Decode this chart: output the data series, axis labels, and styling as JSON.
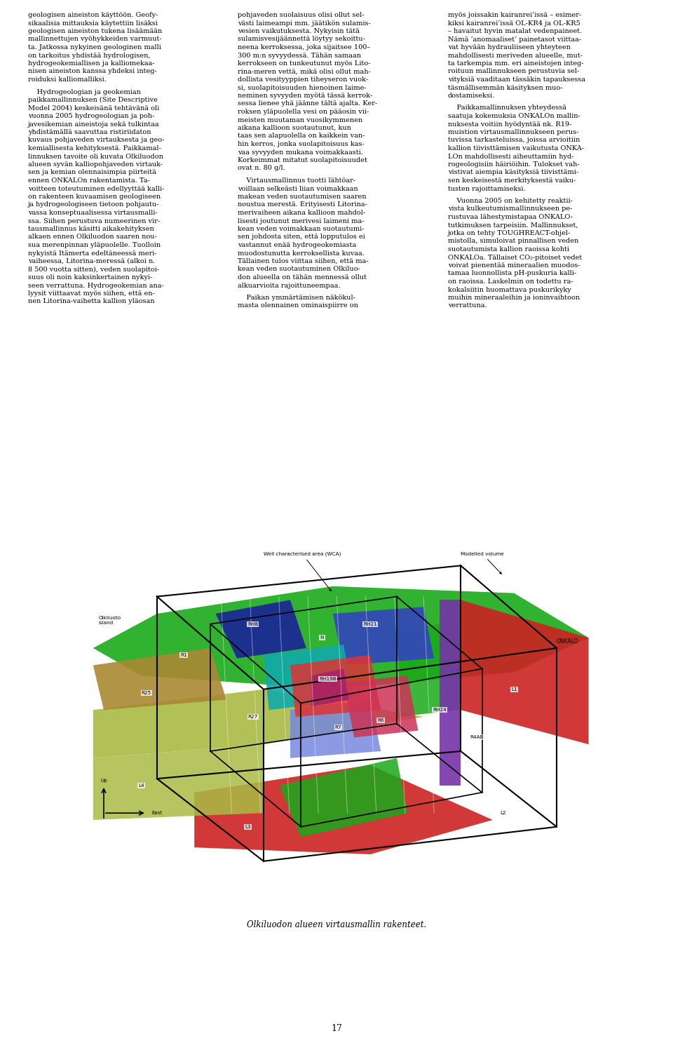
{
  "page_number": "17",
  "background_color": "#ffffff",
  "text_color": "#000000",
  "caption": "Olkiluodon alueen virtausmallin rakenteet.",
  "col1_paragraphs": [
    "geologisen aineiston käyttöön. Geofy-\nsikaalisia mittauksia käytettiin lisäksi\ngeologisen aineiston tukena lisäämään\nmallinnettujen vyöhykkeiden varmuut-\nta. Jatkossa nykyinen geologinen malli\non tarkoitus yhdistää hydrologisen,\nhydrogeokemiallisen ja kalliomekaa-\nnisen aineiston kanssa yhdeksi integ-\nroiduksi kalliomalliksi.",
    "    Hydrogeologian ja geokemian\npaikkamallinnuksen (Site Descriptive\nModel 2004) keskeisänä tehtävänä oli\nvuonna 2005 hydrogeologian ja poh-\njavesikemian aineistoja sekä tulkintaa\nyhdistämällä saavuttaa ristiriidaton\nkuvaus pohjaveden virtauksesta ja geo-\nkemiallisesta kehityksestä. Paikkamal-\nlinnuksen tavoite oli kuvata Olkiluodon\nalueen syvän kalliopohjaveden virtauk-\nsen ja kemian olennaisimpia piirteitä\nennen ONKALOn rakentamista. Ta-\nvoitteen toteutuminen edellyyttää kalli-\non rakenteen kuvaamisen geologiseen\nja hydrogeologiseen tietoon pohjautu-\nvassa konseptuaalisessa virtausmalli-\nssa. Siihen perustuva numeerinen vir-\ntausmallinnus käsitti aikakehityksen\nalkaen ennen Olkiluodon saaren nou-\nsua merenpinnan yläpuolelle. Tuolloin\nnykyistä Itämerta edeltäneessä meri-\nvaiheessa, Litorina-meressä (alkoi n.\n8 500 vuotta sitten), veden suolapitoi-\nsuus oli noin kaksinkertainen nykyi-\nseen verrattuna. Hydrogeokemian ana-\nlyysit viittaavat myös siihen, että en-\nnen Litorina-vaihetta kallion yläosan"
  ],
  "col2_paragraphs": [
    "pohjaveden suolaisuus olisi ollut sel-\nvästi laimeampi mm. jäätikön sulamis-\nvesien vaikutuksesta. Nykyisin tätä\nsulamisvesijäännettä löytyy sekoittu-\nneena kerroksessa, joka sijaitsee 100–\n300 m:n syvyydessä. Tähän samaan\nkerrokseen on tunkeutunut myös Lito-\nrina-meren vettä, mikä olisi ollut mah-\ndollista vesityyppien tiheyseron vuok-\nsi, suolapitoisuuden hienoinen laime-\nneminen syvyyden myötä tässä kerrok-\nsessa lienee yhä jäänne tältä ajalta. Ker-\nroksen yläpuolella vesi on pääosin vii-\nmeisten muutaman vuosikymmenen\naikana kallioon suotautunut, kun\ntaas sen alapuolella on kaikkein van-\nhin kerros, jonka suolapitoisuus kas-\nvaa syvyyden mukana voimakkaasti.\nKorkeimmat mitatut suolapitoisuudet\novat n. 80 g/l.",
    "    Virtausmallinnus tuotti lähtöar-\nvoillaan selkeästi liian voimakkaan\nmakean veden suotautumisen saaren\nnoustua merestä. Erityisesti Litorina-\nmerivaiheen aikana kallioon mahdol-\nlisesti joutunut merivesi laimeni ma-\nkean veden voimakkaan suotautumi-\nsen johdosta siten, että lopputulos ei\nvastannut enää hydrogeokemiasta\nmuodostunutta kerroksellista kuvaa.\nTällainen tulos viittaa siihen, että ma-\nkean veden suotautuminen Olkiluo-\ndon alueella on tähän mennessä ollut\nalkuarvioita rajoittuneempaa.",
    "    Paikan ymmärtämisen näkökul-\nmasta olennainen ominaispiirre on"
  ],
  "col3_paragraphs": [
    "myös joissakin kairanrei’issä – esimer-\nkiksi kairanrei’issä OL-KR4 ja OL-KR5\n– havaitut hyvin matalat vedenpaineet.\nNämä ‘anomaaliset’ painetasot viittaa-\nvat hyvään hydrauliiseen yhteyteen\nmahdollisesti meriveden alueelle, mut-\nta tarkempia mm. eri aineistojen integ-\nroituun mallinnukseen perustuvia sel-\nvityksiä vaaditaan tässäkin tapauksessa\ntäsmällisemmän käsityksen muo-\ndostamiseksi.",
    "    Paikkamallinnuksen yhteydessä\nsaatuja kokemuksia ONKALOn mallin-\nnuksesta voitiin hyödyntää nk. R19-\nmuistion virtausmallinnukseen perus-\ntuvissa tarkasteluissa, joissa arvioitiin\nkallion tiivisttämisen vaikutusta ONKA-\nLOn mahdollisesti aiheuttamiin hyd-\nrogeologisiin häiriöihin. Tulokset vah-\nvistivat aiempia käsityksiä tiivisttämi-\nsen keskeisestä merkityksestä vaiku-\ntusten rajoittamiseksi.",
    "    Vuonna 2005 on kehitetty reaktii-\nvista kulkeutumismallinnukseen pe-\nrustuvaa lähestymistapaa ONKALO-\ntutkimuksen tarpeisiin. Mallinnukset,\njotka on tehty TOUGHREACT-ohjel-\nmistolla, simuloivat pinnallisen veden\nsuotautumista kallion raoissa kohti\nONKALOa. Tällaiset CO₂-pitoiset vedet\nvoivat pienentää mineraalien muodos-\ntamaa luonnollista pH-puskuria kalli-\non raoissa. Laskelmin on todettu ra-\nkokalsiitin huomattava puskurikyky\nmuihin mineraaleihin ja ioninvaihtoon\nverrattuna."
  ]
}
